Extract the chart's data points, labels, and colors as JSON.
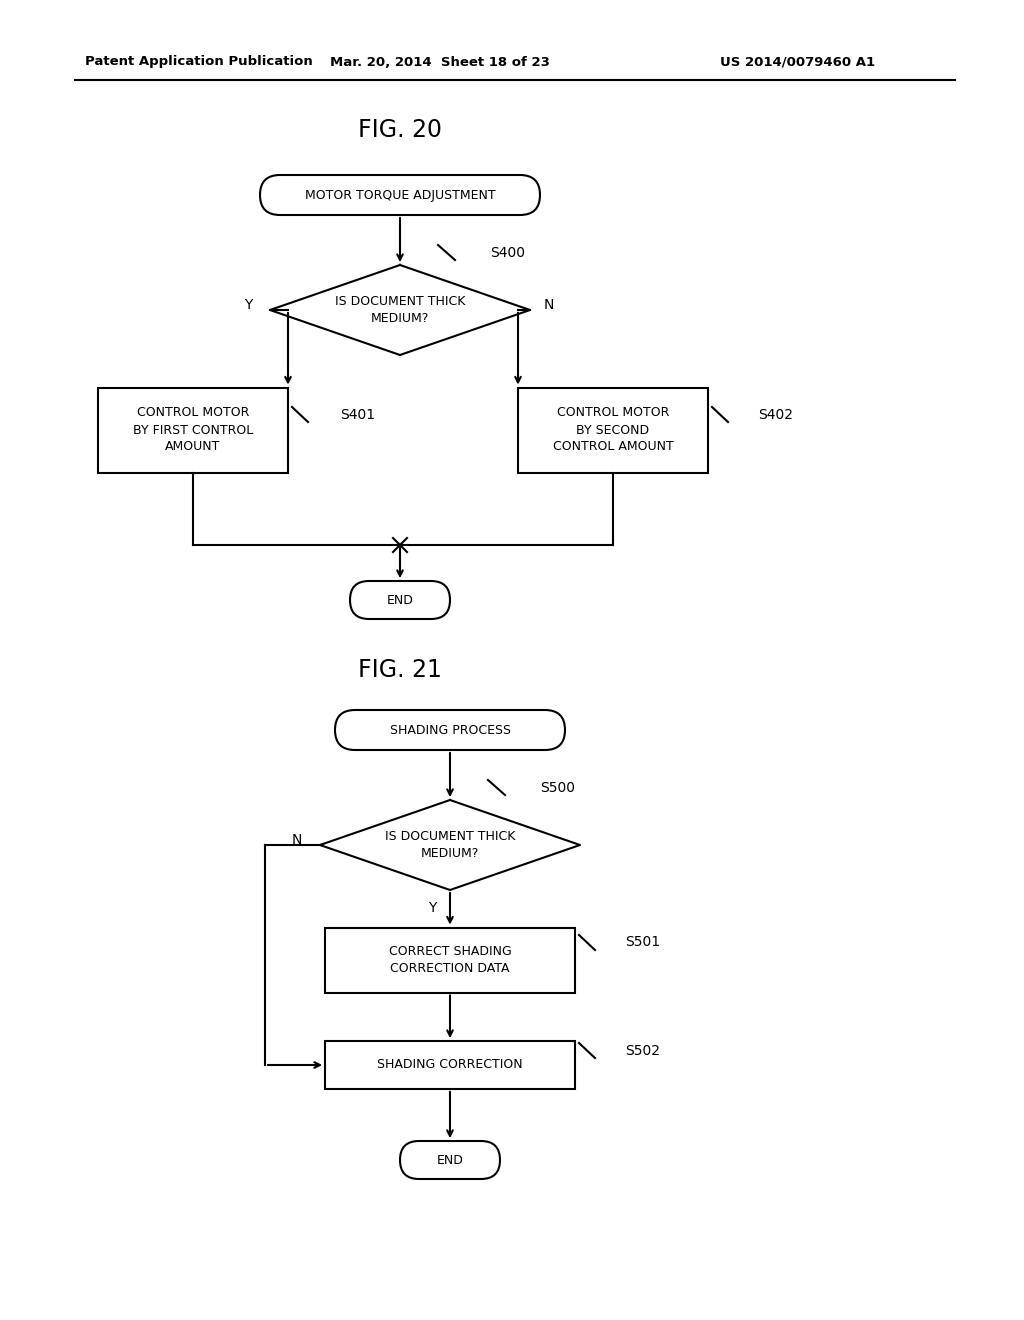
{
  "bg_color": "#ffffff",
  "text_color": "#000000",
  "header_left": "Patent Application Publication",
  "header_mid": "Mar. 20, 2014  Sheet 18 of 23",
  "header_right": "US 2014/0079460 A1",
  "fig20_title": "FIG. 20",
  "fig21_title": "FIG. 21",
  "fig20_start_label": "MOTOR TORQUE ADJUSTMENT",
  "fig20_diamond_label": "IS DOCUMENT THICK\nMEDIUM?",
  "fig20_s400": "S400",
  "fig20_left_box": "CONTROL MOTOR\nBY FIRST CONTROL\nAMOUNT",
  "fig20_s401": "S401",
  "fig20_right_box": "CONTROL MOTOR\nBY SECOND\nCONTROL AMOUNT",
  "fig20_s402": "S402",
  "fig20_end_label": "END",
  "fig20_y_label": "Y",
  "fig20_n_label": "N",
  "fig21_start_label": "SHADING PROCESS",
  "fig21_diamond_label": "IS DOCUMENT THICK\nMEDIUM?",
  "fig21_s500": "S500",
  "fig21_box1_label": "CORRECT SHADING\nCORRECTION DATA",
  "fig21_s501": "S501",
  "fig21_box2_label": "SHADING CORRECTION",
  "fig21_s502": "S502",
  "fig21_end_label": "END",
  "fig21_y_label": "Y",
  "fig21_n_label": "N",
  "line_width": 1.5,
  "font_size_header": 9.5,
  "font_size_title": 17,
  "font_size_box": 9,
  "font_size_step": 10
}
